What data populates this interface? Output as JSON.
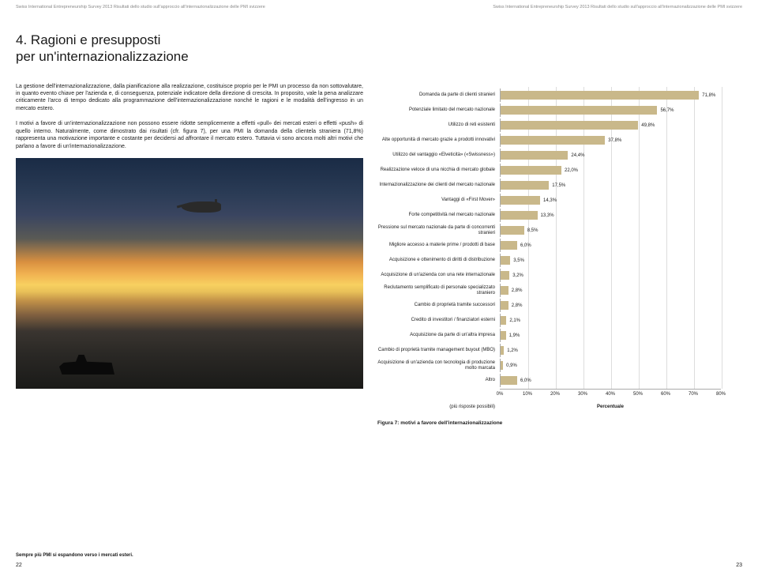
{
  "header": {
    "left": "Swiss International Entrepreneurship Survey 2013 Risultati dello studio sull'approccio all'internazionalizzazione delle PMI svizzere",
    "right": "Swiss International Entrepreneurship Survey 2013 Risultati dello studio sull'approccio all'internazionalizzazione delle PMI svizzere"
  },
  "section": {
    "number": "4.",
    "title_line1": "Ragioni e presupposti",
    "title_line2": "per un'internazionalizzazione"
  },
  "paragraphs": {
    "p1": "La gestione dell'internazionalizzazione, dalla pianificazione alla realizzazione, costituisce proprio per le PMI un processo da non sottovalutare, in quanto evento chiave per l'azienda e, di conseguenza, potenziale indicatore della direzione di crescita. In proposito, vale la pena analizzare criticamente l'arco di tempo dedicato alla programmazione dell'internazionalizzazione nonché le ragioni e le modalità dell'ingresso in un mercato estero.",
    "p2": "I motivi a favore di un'internazionalizzazione non possono essere ridotte semplicemente a effetti «pull» dei mercati esteri o effetti «push» di quello interno. Naturalmente, come dimostrato dai risultati (cfr. figura 7), per una PMI la domanda della clientela straniera (71,8%) rappresenta una motivazione importante e costante per decidersi ad affrontare il mercato estero. Tuttavia vi sono ancora molti altri motivi che parlano a favore di un'internazionalizzazione."
  },
  "chart": {
    "type": "bar",
    "bar_color": "#c9b88a",
    "grid_color": "#dddddd",
    "axis_color": "#aaaaaa",
    "text_color": "#1a1a1a",
    "label_fontsize": 6,
    "value_fontsize": 6,
    "xlim": [
      0,
      80
    ],
    "xtick_step": 10,
    "xticks": [
      "0%",
      "10%",
      "20%",
      "30%",
      "40%",
      "50%",
      "60%",
      "70%",
      "80%"
    ],
    "xlabel": "Percentuale",
    "note": "(più risposte possibili)",
    "caption": "Figura 7: motivi a favore dell'internazionalizzazione",
    "items": [
      {
        "label": "Domanda da parte di clienti stranieri",
        "value": 71.8,
        "display": "71,8%"
      },
      {
        "label": "Potenziale limitato del mercato nazionale",
        "value": 56.7,
        "display": "56,7%"
      },
      {
        "label": "Utilizzo di reti esistenti",
        "value": 49.8,
        "display": "49,8%"
      },
      {
        "label": "Alte opportunità di mercato grazie a prodotti innovativi",
        "value": 37.8,
        "display": "37,8%"
      },
      {
        "label": "Utilizzo del vantaggio «Elveticità» («Swissness»)",
        "value": 24.4,
        "display": "24,4%"
      },
      {
        "label": "Realizzazione veloce di una nicchia di mercato globale",
        "value": 22.0,
        "display": "22,0%"
      },
      {
        "label": "Internazionalizzazione dei clienti del mercato nazionale",
        "value": 17.5,
        "display": "17,5%"
      },
      {
        "label": "Vantaggi di «First Mover»",
        "value": 14.3,
        "display": "14,3%"
      },
      {
        "label": "Forte competitività nel mercato nazionale",
        "value": 13.3,
        "display": "13,3%"
      },
      {
        "label": "Pressione sul mercato nazionale da parte di concorrenti stranieri",
        "value": 8.5,
        "display": "8,5%"
      },
      {
        "label": "Migliore accesso a materie prime / prodotti di base",
        "value": 6.0,
        "display": "6,0%"
      },
      {
        "label": "Acquisizione e ottenimento di diritti di distribuzione",
        "value": 3.5,
        "display": "3,5%"
      },
      {
        "label": "Acquisizione di un'azienda con una rete internazionale",
        "value": 3.2,
        "display": "3,2%"
      },
      {
        "label": "Reclutamento semplificato di personale specializzato straniero",
        "value": 2.8,
        "display": "2,8%"
      },
      {
        "label": "Cambio di proprietà tramite successori",
        "value": 2.8,
        "display": "2,8%"
      },
      {
        "label": "Credito di investitori / finanziatori esterni",
        "value": 2.1,
        "display": "2,1%"
      },
      {
        "label": "Acquisizione da parte di un'altra impresa",
        "value": 1.9,
        "display": "1,9%"
      },
      {
        "label": "Cambio di proprietà tramite management buyout (MBO)",
        "value": 1.2,
        "display": "1,2%"
      },
      {
        "label": "Acquisizione di un'azienda con tecnologia di produzione molto marcata",
        "value": 0.9,
        "display": "0,9%"
      },
      {
        "label": "Altro",
        "value": 6.0,
        "display": "6,0%"
      }
    ]
  },
  "footer": {
    "caption": "Sempre più PMI si espandono verso i mercati esteri.",
    "page_left": "22",
    "page_right": "23"
  }
}
